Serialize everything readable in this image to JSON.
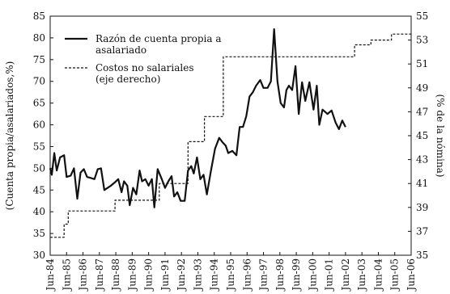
{
  "chart_data": {
    "type": "line",
    "ylabel": "(Cuenta propia/asalariados,%)",
    "y2label": "(% de la nómina)",
    "ylim": [
      30,
      85
    ],
    "y2lim": [
      35,
      55
    ],
    "yticks": [
      30,
      35,
      40,
      45,
      50,
      55,
      60,
      65,
      70,
      75,
      80,
      85
    ],
    "y2ticks": [
      35,
      37,
      39,
      41,
      43,
      45,
      47,
      49,
      51,
      53,
      55
    ],
    "x_range": [
      1984.5,
      2006.5
    ],
    "x_ticks": [
      1984.5,
      1985.5,
      1986.5,
      1987.5,
      1988.5,
      1989.5,
      1990.5,
      1991.5,
      1992.5,
      1993.5,
      1994.5,
      1995.5,
      1996.5,
      1997.5,
      1998.5,
      1999.5,
      2000.5,
      2001.5,
      2002.5,
      2003.5,
      2004.5,
      2005.5,
      2006.5
    ],
    "x_tick_labels": [
      "Jun-84",
      "Jun-85",
      "Jun-86",
      "Jun-87",
      "Jun-88",
      "Jun-89",
      "Jun-90",
      "Jun-91",
      "Jun-92",
      "Jun-93",
      "Jun-94",
      "Jun-95",
      "Jun-96",
      "Jun-97",
      "Jun-98",
      "Jun-99",
      "Jun-00",
      "Jun-01",
      "Jun-02",
      "Jun-03",
      "Jun-04",
      "Jun-05",
      "Jun-06"
    ],
    "grid": false,
    "legend": {
      "position": "top-left"
    },
    "series": [
      {
        "name": "Razón de cuenta propia a asalariado",
        "name_lines": [
          "Razón de cuenta propia a",
          "asalariado"
        ],
        "style": "solid",
        "axis": "left",
        "color": "#111111",
        "points": [
          [
            1984.5,
            50
          ],
          [
            1984.6,
            48.5
          ],
          [
            1984.75,
            53.5
          ],
          [
            1984.9,
            49.5
          ],
          [
            1985.1,
            52.5
          ],
          [
            1985.35,
            53
          ],
          [
            1985.5,
            48
          ],
          [
            1985.75,
            48.3
          ],
          [
            1985.95,
            50
          ],
          [
            1986.15,
            43
          ],
          [
            1986.35,
            49
          ],
          [
            1986.55,
            49.8
          ],
          [
            1986.75,
            48
          ],
          [
            1986.95,
            47.8
          ],
          [
            1987.2,
            47.5
          ],
          [
            1987.4,
            49.8
          ],
          [
            1987.6,
            50
          ],
          [
            1987.8,
            45
          ],
          [
            1988.0,
            45.5
          ],
          [
            1988.2,
            46
          ],
          [
            1988.45,
            46.8
          ],
          [
            1988.65,
            47.5
          ],
          [
            1988.85,
            44.5
          ],
          [
            1989.0,
            47
          ],
          [
            1989.2,
            46
          ],
          [
            1989.35,
            41.5
          ],
          [
            1989.55,
            45.5
          ],
          [
            1989.75,
            44
          ],
          [
            1989.95,
            49.5
          ],
          [
            1990.1,
            47
          ],
          [
            1990.3,
            47.5
          ],
          [
            1990.5,
            46
          ],
          [
            1990.7,
            47.5
          ],
          [
            1990.85,
            41
          ],
          [
            1991.05,
            49.8
          ],
          [
            1991.3,
            47.5
          ],
          [
            1991.5,
            45.5
          ],
          [
            1991.7,
            47
          ],
          [
            1991.9,
            48.2
          ],
          [
            1992.05,
            43.5
          ],
          [
            1992.25,
            44.5
          ],
          [
            1992.45,
            42.5
          ],
          [
            1992.7,
            42.5
          ],
          [
            1992.9,
            49.5
          ],
          [
            1993.1,
            50.5
          ],
          [
            1993.25,
            48.8
          ],
          [
            1993.45,
            52.5
          ],
          [
            1993.65,
            47.5
          ],
          [
            1993.85,
            48.5
          ],
          [
            1994.05,
            44
          ],
          [
            1994.3,
            49.5
          ],
          [
            1994.55,
            54.5
          ],
          [
            1994.8,
            57
          ],
          [
            1995.0,
            56
          ],
          [
            1995.2,
            55.2
          ],
          [
            1995.35,
            53.5
          ],
          [
            1995.6,
            54
          ],
          [
            1995.85,
            53
          ],
          [
            1996.05,
            59.5
          ],
          [
            1996.25,
            59.5
          ],
          [
            1996.45,
            62
          ],
          [
            1996.65,
            66.5
          ],
          [
            1996.85,
            67.5
          ],
          [
            1997.05,
            69
          ],
          [
            1997.3,
            70.3
          ],
          [
            1997.5,
            68.5
          ],
          [
            1997.75,
            68.5
          ],
          [
            1997.95,
            70
          ],
          [
            1998.15,
            82
          ],
          [
            1998.35,
            70
          ],
          [
            1998.55,
            65
          ],
          [
            1998.75,
            64
          ],
          [
            1998.9,
            68
          ],
          [
            1999.05,
            69
          ],
          [
            1999.25,
            68
          ],
          [
            1999.45,
            73.5
          ],
          [
            1999.65,
            62.5
          ],
          [
            1999.85,
            69.8
          ],
          [
            2000.05,
            65.5
          ],
          [
            2000.3,
            69.8
          ],
          [
            2000.55,
            63.5
          ],
          [
            2000.75,
            69
          ],
          [
            2000.9,
            60
          ],
          [
            2001.1,
            63.5
          ],
          [
            2001.4,
            62.5
          ],
          [
            2001.65,
            63.3
          ],
          [
            2001.9,
            60.5
          ],
          [
            2002.1,
            59
          ],
          [
            2002.3,
            61
          ],
          [
            2002.5,
            59.5
          ]
        ]
      },
      {
        "name": "Costos no salariales (eje derecho)",
        "name_lines": [
          "Costos no salariales",
          "(eje derecho)"
        ],
        "style": "dashed",
        "axis": "right",
        "color": "#111111",
        "points": [
          [
            1984.5,
            36.5
          ],
          [
            1985.35,
            36.5
          ],
          [
            1985.35,
            37.6
          ],
          [
            1985.6,
            37.6
          ],
          [
            1985.6,
            38.7
          ],
          [
            1988.45,
            38.7
          ],
          [
            1988.45,
            39.6
          ],
          [
            1991.15,
            39.6
          ],
          [
            1991.15,
            41
          ],
          [
            1992.9,
            41
          ],
          [
            1992.9,
            44.5
          ],
          [
            1993.9,
            44.5
          ],
          [
            1993.9,
            46.6
          ],
          [
            1995.05,
            46.6
          ],
          [
            1995.05,
            51.6
          ],
          [
            2003.05,
            51.6
          ],
          [
            2003.05,
            52.6
          ],
          [
            2004.05,
            52.6
          ],
          [
            2004.05,
            53
          ],
          [
            2005.3,
            53
          ],
          [
            2005.3,
            53.5
          ],
          [
            2006.5,
            53.5
          ]
        ]
      }
    ]
  }
}
